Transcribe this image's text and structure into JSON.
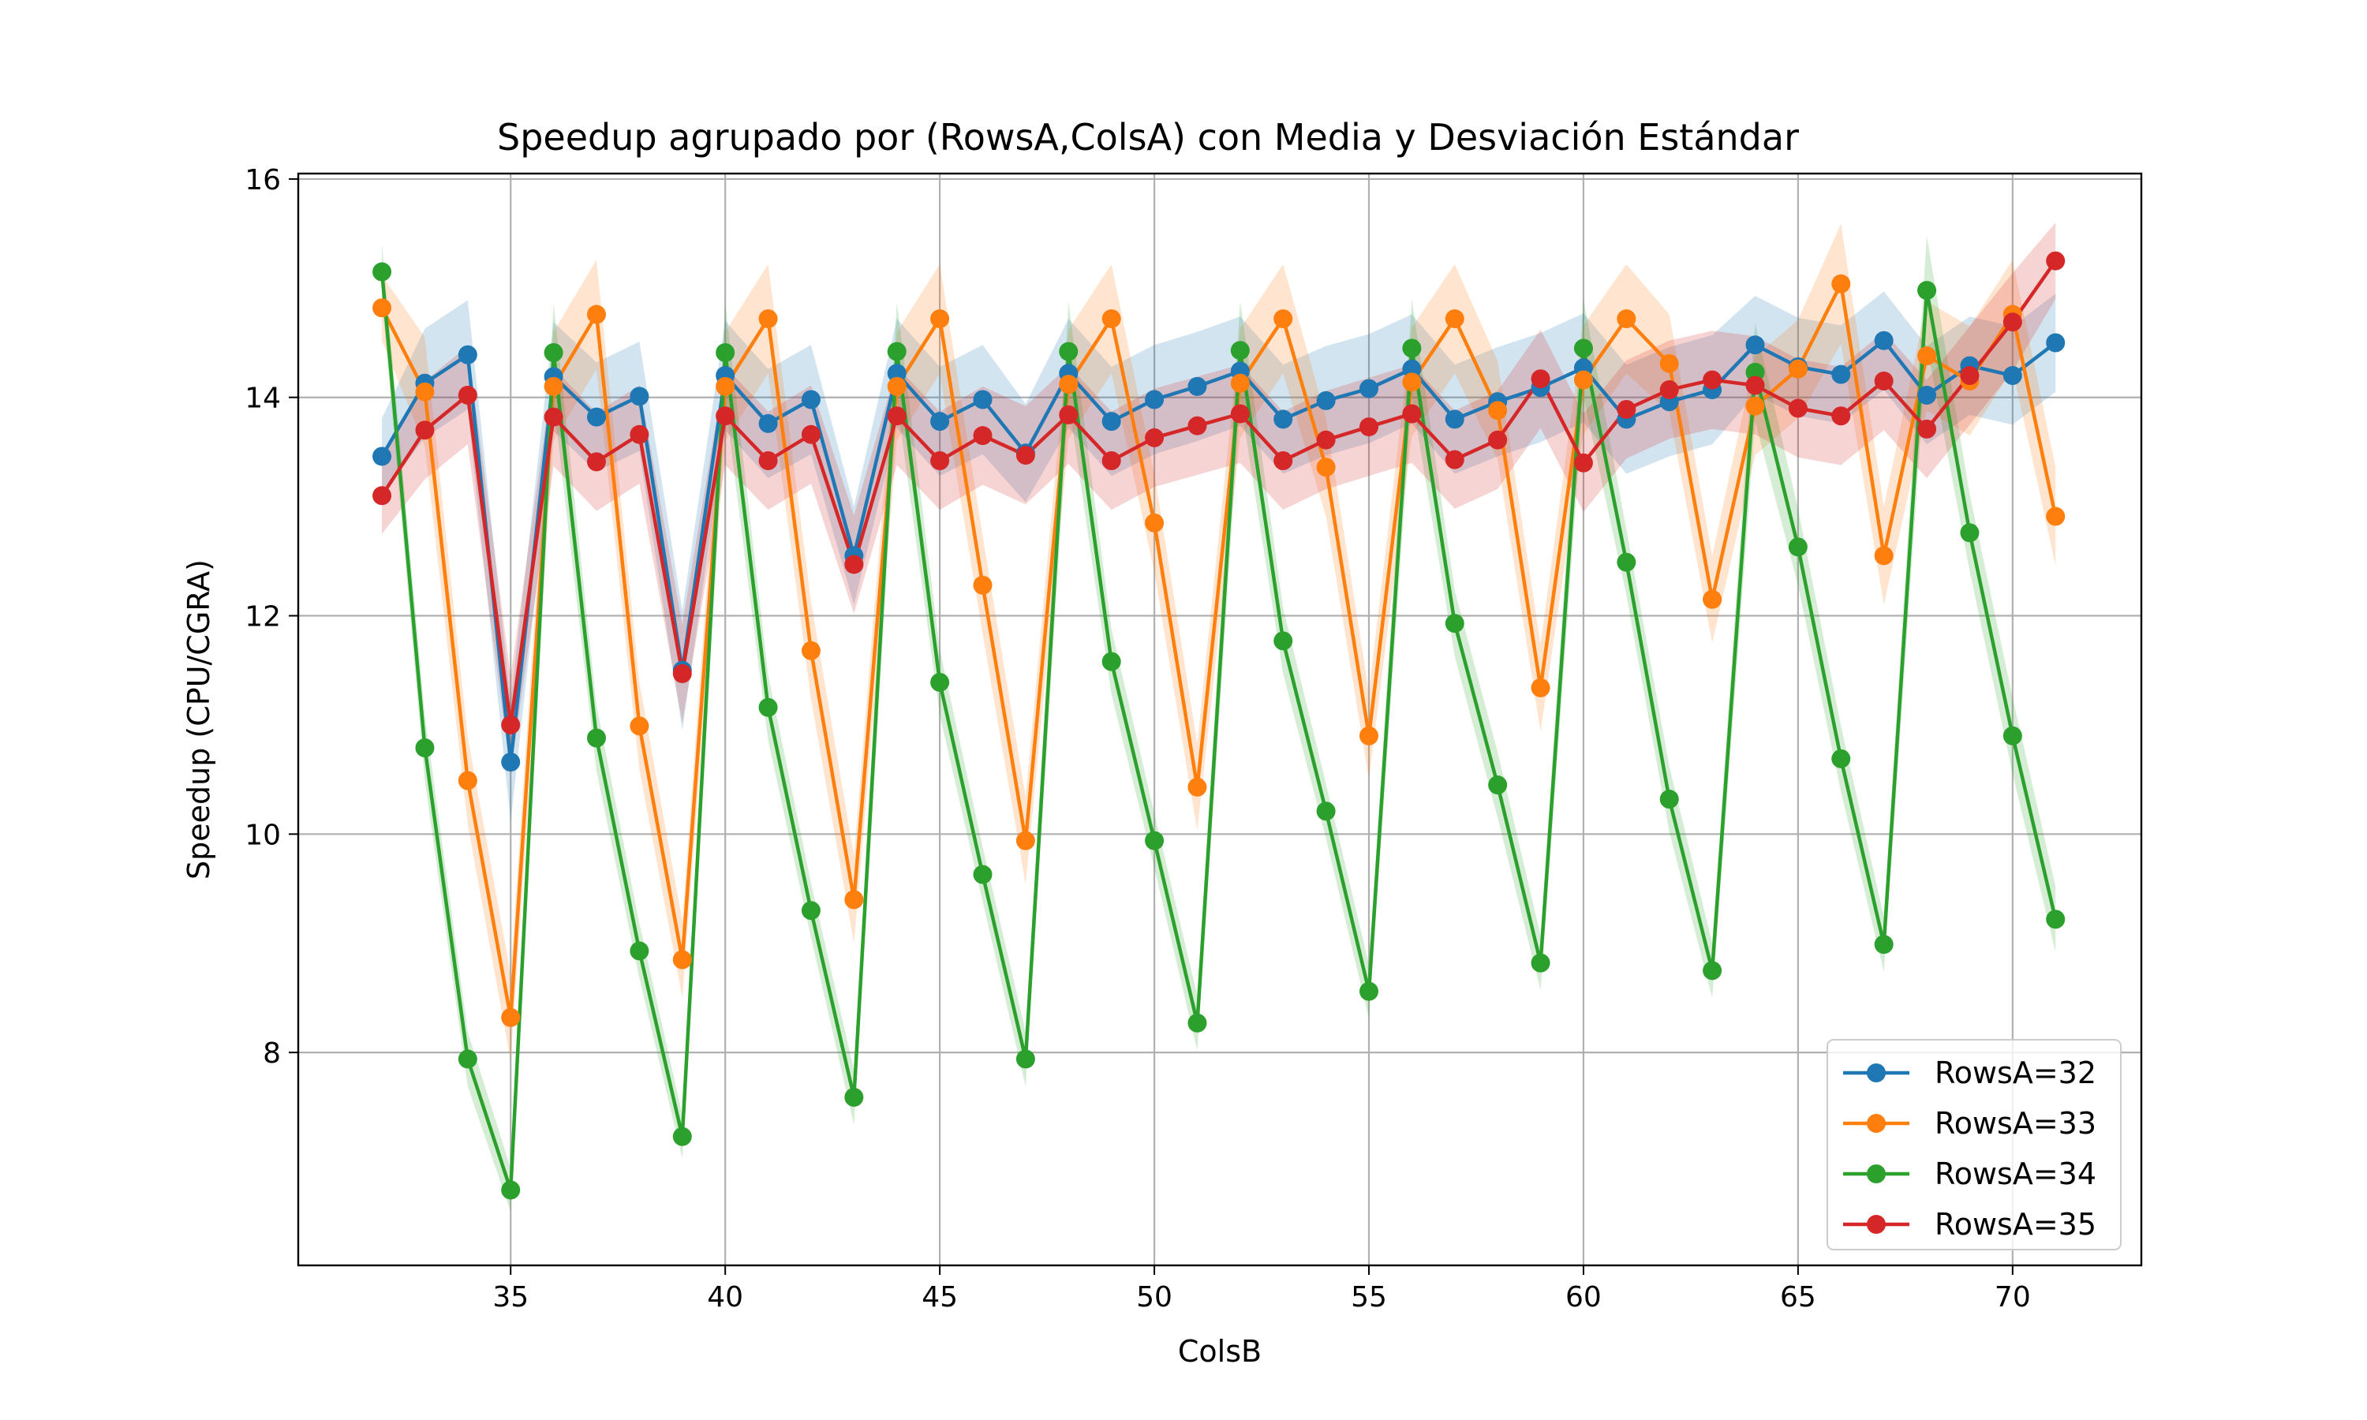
{
  "chart_data": {
    "type": "line",
    "title": "Speedup agrupado por (RowsA,ColsA) con Media y Desviación Estándar",
    "xlabel": "ColsB",
    "ylabel": "Speedup (CPU/CGRA)",
    "xlim": [
      30.05,
      73.0
    ],
    "ylim": [
      6.05,
      16.05
    ],
    "xticks": [
      35,
      40,
      45,
      50,
      55,
      60,
      65,
      70
    ],
    "yticks": [
      8,
      10,
      12,
      14,
      16
    ],
    "grid": true,
    "legend_position": "bottom-right",
    "x": [
      32,
      33,
      34,
      35,
      36,
      37,
      38,
      39,
      40,
      41,
      42,
      43,
      44,
      45,
      46,
      47,
      48,
      49,
      50,
      51,
      52,
      53,
      54,
      55,
      56,
      57,
      58,
      59,
      60,
      61,
      62,
      63,
      64,
      65,
      66,
      67,
      68,
      69,
      70,
      71
    ],
    "series": [
      {
        "name": "RowsA=32",
        "color": "#1f77b4",
        "values": [
          13.46,
          14.13,
          14.39,
          10.66,
          14.19,
          13.82,
          14.01,
          11.5,
          14.2,
          13.76,
          13.98,
          12.55,
          14.22,
          13.78,
          13.98,
          13.49,
          14.22,
          13.78,
          13.98,
          14.1,
          14.24,
          13.8,
          13.97,
          14.08,
          14.26,
          13.8,
          13.96,
          14.09,
          14.27,
          13.8,
          13.96,
          14.07,
          14.48,
          14.28,
          14.21,
          14.52,
          14.02,
          14.29,
          14.2,
          14.5
        ],
        "std": [
          0.35,
          0.5,
          0.5,
          0.55,
          0.5,
          0.5,
          0.5,
          0.55,
          0.5,
          0.5,
          0.5,
          0.45,
          0.5,
          0.5,
          0.5,
          0.45,
          0.5,
          0.5,
          0.5,
          0.5,
          0.5,
          0.5,
          0.5,
          0.5,
          0.5,
          0.5,
          0.5,
          0.5,
          0.5,
          0.5,
          0.5,
          0.5,
          0.45,
          0.45,
          0.45,
          0.45,
          0.45,
          0.45,
          0.45,
          0.45
        ]
      },
      {
        "name": "RowsA=33",
        "color": "#ff7f0e",
        "values": [
          14.82,
          14.05,
          10.49,
          8.32,
          14.1,
          14.76,
          10.99,
          8.85,
          14.1,
          14.72,
          11.68,
          9.4,
          14.1,
          14.72,
          12.28,
          9.94,
          14.12,
          14.72,
          12.85,
          10.43,
          14.13,
          14.72,
          13.36,
          10.9,
          14.14,
          14.72,
          13.88,
          11.34,
          14.16,
          14.72,
          14.31,
          12.15,
          13.92,
          14.26,
          15.04,
          12.55,
          14.38,
          14.15,
          14.76,
          12.91
        ],
        "std": [
          0.3,
          0.5,
          0.4,
          0.4,
          0.5,
          0.5,
          0.4,
          0.35,
          0.5,
          0.5,
          0.45,
          0.4,
          0.5,
          0.5,
          0.45,
          0.4,
          0.5,
          0.5,
          0.45,
          0.4,
          0.5,
          0.5,
          0.45,
          0.4,
          0.5,
          0.5,
          0.45,
          0.4,
          0.5,
          0.5,
          0.45,
          0.4,
          0.45,
          0.45,
          0.55,
          0.45,
          0.5,
          0.5,
          0.5,
          0.45
        ]
      },
      {
        "name": "RowsA=34",
        "color": "#2ca02c",
        "values": [
          15.15,
          10.79,
          7.94,
          6.74,
          14.41,
          10.88,
          8.93,
          7.23,
          14.41,
          11.16,
          9.3,
          7.59,
          14.42,
          11.39,
          9.63,
          7.94,
          14.42,
          11.58,
          9.94,
          8.27,
          14.43,
          11.77,
          10.21,
          8.56,
          14.45,
          11.93,
          10.45,
          8.82,
          14.45,
          12.49,
          10.32,
          8.75,
          14.23,
          12.63,
          10.69,
          8.99,
          14.98,
          12.76,
          10.9,
          9.22
        ],
        "std": [
          0.25,
          0.3,
          0.25,
          0.2,
          0.45,
          0.3,
          0.25,
          0.2,
          0.45,
          0.3,
          0.25,
          0.25,
          0.45,
          0.3,
          0.25,
          0.25,
          0.45,
          0.3,
          0.25,
          0.25,
          0.45,
          0.3,
          0.25,
          0.25,
          0.45,
          0.3,
          0.3,
          0.25,
          0.45,
          0.3,
          0.3,
          0.25,
          0.45,
          0.35,
          0.3,
          0.25,
          0.5,
          0.35,
          0.35,
          0.3
        ]
      },
      {
        "name": "RowsA=35",
        "color": "#d62728",
        "values": [
          13.1,
          13.7,
          14.02,
          11.0,
          13.82,
          13.41,
          13.66,
          11.47,
          13.83,
          13.42,
          13.66,
          12.47,
          13.83,
          13.42,
          13.65,
          13.47,
          13.84,
          13.42,
          13.63,
          13.74,
          13.85,
          13.42,
          13.61,
          13.73,
          13.85,
          13.43,
          13.61,
          14.17,
          13.4,
          13.89,
          14.07,
          14.16,
          14.11,
          13.9,
          13.83,
          14.15,
          13.71,
          14.2,
          14.69,
          15.25
        ],
        "std": [
          0.35,
          0.45,
          0.45,
          0.45,
          0.45,
          0.45,
          0.45,
          0.45,
          0.45,
          0.45,
          0.45,
          0.45,
          0.45,
          0.45,
          0.45,
          0.45,
          0.45,
          0.45,
          0.45,
          0.45,
          0.45,
          0.45,
          0.45,
          0.45,
          0.45,
          0.45,
          0.45,
          0.45,
          0.45,
          0.45,
          0.45,
          0.45,
          0.45,
          0.45,
          0.45,
          0.45,
          0.45,
          0.45,
          0.45,
          0.35
        ]
      }
    ]
  }
}
